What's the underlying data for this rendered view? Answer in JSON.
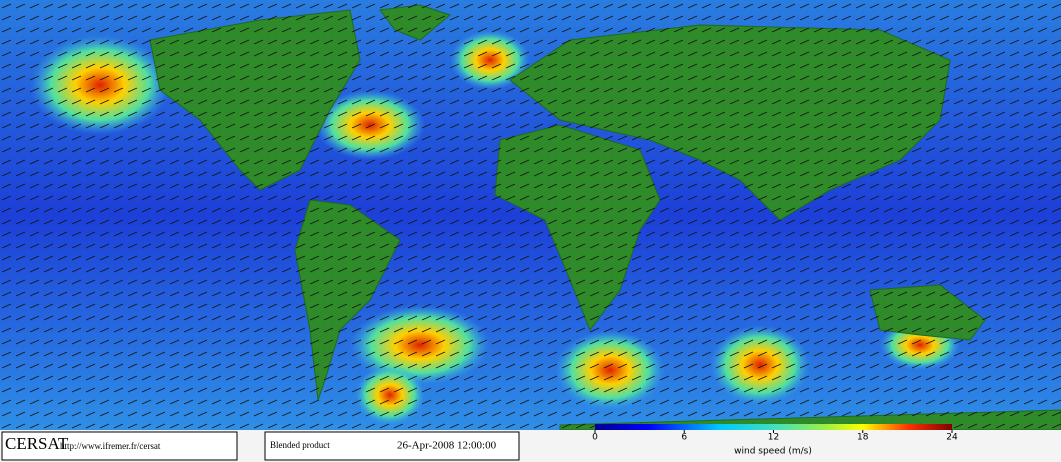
{
  "producer": {
    "name": "CERSAT",
    "url": "http://www.ifremer.fr/cersat"
  },
  "product": {
    "title": "Blended product",
    "date": "26-Apr-2008 12:00:00"
  },
  "colorbar": {
    "label": "wind speed (m/s)",
    "ticks": [
      0,
      6,
      12,
      18,
      24
    ]
  }
}
